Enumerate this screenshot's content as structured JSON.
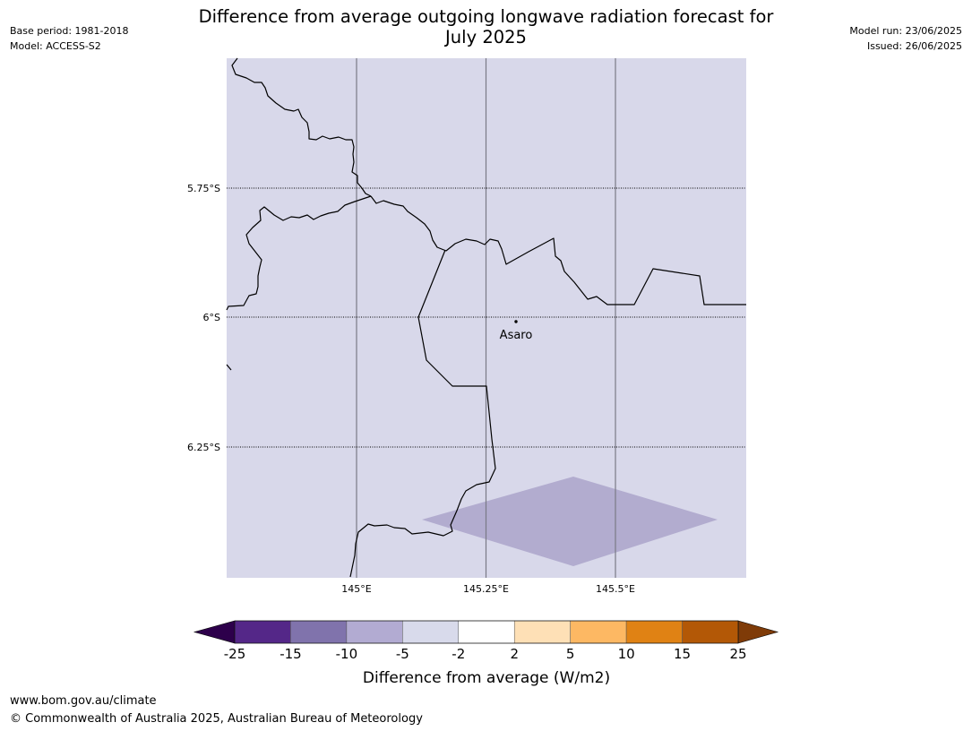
{
  "header": {
    "title_line1": "Difference from average outgoing longwave radiation forecast for",
    "title_line2": "July 2025",
    "base_period": "Base period: 1981-2018",
    "model": "Model: ACCESS-S2",
    "model_run": "Model run: 23/06/2025",
    "issued": "Issued: 26/06/2025"
  },
  "map": {
    "lat_labels": [
      "5.75°S",
      "6°S",
      "6.25°S"
    ],
    "lon_labels": [
      "145°E",
      "145.25°E",
      "145.5°E"
    ],
    "place_name": "Asaro",
    "background_color": "#d8d8ea",
    "anomaly_patch_color": "#b2accf",
    "anomaly_patch_range": "-10 to -5"
  },
  "colorbar": {
    "label": "Difference from average (W/m2)",
    "ticks": [
      "-25",
      "-15",
      "-10",
      "-5",
      "-2",
      "2",
      "5",
      "10",
      "15",
      "25"
    ],
    "colors": [
      "#2d004b",
      "#542788",
      "#8073ac",
      "#b2abd2",
      "#d8daeb",
      "#ffffff",
      "#fee0b6",
      "#fdb863",
      "#e08214",
      "#b35806",
      "#7f3b08"
    ]
  },
  "footer": {
    "url": "www.bom.gov.au/climate",
    "copyright": "© Commonwealth of Australia 2025, Australian Bureau of Meteorology"
  },
  "chart_data": {
    "type": "heatmap",
    "title": "Difference from average outgoing longwave radiation forecast for July 2025",
    "xlabel": "",
    "ylabel": "",
    "lat_ticks": [
      -5.75,
      -6.0,
      -6.25
    ],
    "lon_ticks": [
      145.0,
      145.25,
      145.5
    ],
    "xlim": [
      144.75,
      145.75
    ],
    "ylim": [
      -6.5,
      -5.5
    ],
    "grid": true,
    "field_background_class": "-5 to -2",
    "field_patch_class": "-10 to -5",
    "point_marker": {
      "name": "Asaro",
      "lon": 145.3,
      "lat": -6.01
    },
    "colorbar_bounds": [
      -25,
      -15,
      -10,
      -5,
      -2,
      2,
      5,
      10,
      15,
      25
    ],
    "colorbar_label": "Difference from average (W/m2)"
  }
}
